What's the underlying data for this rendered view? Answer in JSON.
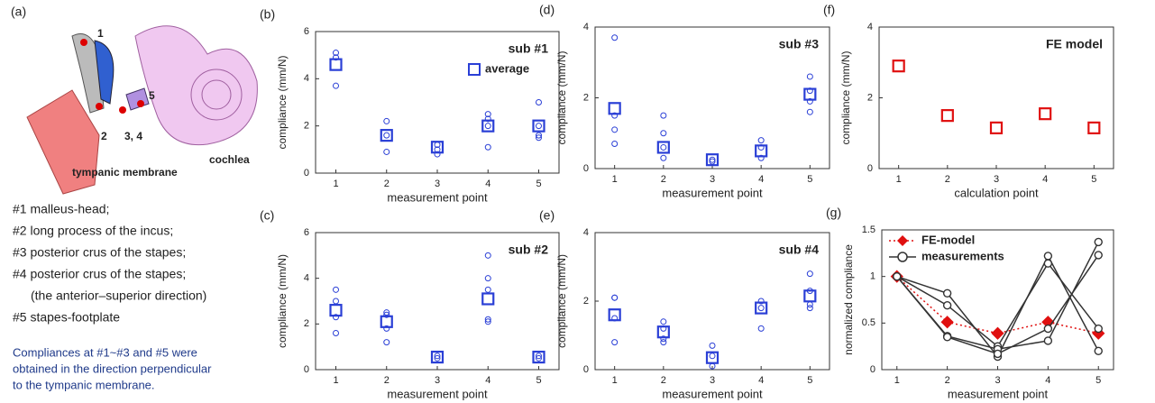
{
  "panel_a": {
    "panel_label": "(a)",
    "diagram_labels": [
      "1",
      "2",
      "3, 4",
      "5",
      "cochlea",
      "tympanic membrane"
    ],
    "list": [
      "#1 malleus-head;",
      "#2 long process of the incus;",
      "#3 posterior crus of the stapes;",
      "#4 posterior crus of the stapes;",
      "(the anterior–superior direction)",
      "#5 stapes-footplate"
    ],
    "note": [
      "Compliances at #1~#3 and #5 were",
      "obtained in the direction perpendicular",
      "to the tympanic membrane."
    ]
  },
  "chart_data": [
    {
      "type": "scatter",
      "panel_label": "(b)",
      "annotation": "sub #1",
      "xlabel": "measurement point",
      "ylabel": "compliance (mm/N)",
      "xlim": [
        0.6,
        5.4
      ],
      "xticks": [
        1,
        2,
        3,
        4,
        5
      ],
      "ylim": [
        0,
        6
      ],
      "yticks": [
        0,
        2,
        4,
        6
      ],
      "legend": "upper right",
      "series": [
        {
          "color": "#2a3fd6",
          "marker": "circle",
          "x": [
            1,
            1,
            1,
            2,
            2,
            2,
            3,
            3,
            3,
            4,
            4,
            4,
            4,
            5,
            5,
            5,
            5
          ],
          "values": [
            5.1,
            4.9,
            3.7,
            2.2,
            1.6,
            0.9,
            1.2,
            1.0,
            0.8,
            2.5,
            2.3,
            1.1,
            2.0,
            3.0,
            2.0,
            1.6,
            1.5
          ]
        },
        {
          "name": "average",
          "color": "#2a3fd6",
          "marker": "square",
          "x": [
            1,
            2,
            3,
            4,
            5
          ],
          "values": [
            4.6,
            1.6,
            1.1,
            2.0,
            2.0
          ]
        }
      ]
    },
    {
      "type": "scatter",
      "panel_label": "(c)",
      "annotation": "sub #2",
      "xlabel": "measurement point",
      "ylabel": "compliance (mm/N)",
      "xlim": [
        0.6,
        5.4
      ],
      "xticks": [
        1,
        2,
        3,
        4,
        5
      ],
      "ylim": [
        0,
        6
      ],
      "yticks": [
        0,
        2,
        4,
        6
      ],
      "series": [
        {
          "color": "#2a3fd6",
          "marker": "circle",
          "x": [
            1,
            1,
            1,
            1,
            2,
            2,
            2,
            2,
            3,
            3,
            4,
            4,
            4,
            4,
            4,
            5,
            5
          ],
          "values": [
            3.5,
            3.0,
            2.3,
            1.6,
            2.5,
            2.4,
            1.8,
            1.2,
            0.6,
            0.5,
            5.0,
            4.0,
            3.5,
            2.2,
            2.1,
            0.6,
            0.5
          ]
        },
        {
          "color": "#2a3fd6",
          "marker": "square",
          "x": [
            1,
            2,
            3,
            4,
            5
          ],
          "values": [
            2.6,
            2.1,
            0.55,
            3.1,
            0.55
          ]
        }
      ]
    },
    {
      "type": "scatter",
      "panel_label": "(d)",
      "annotation": "sub #3",
      "xlabel": "measurement point",
      "ylabel": "compliance (mm/N)",
      "xlim": [
        0.6,
        5.4
      ],
      "xticks": [
        1,
        2,
        3,
        4,
        5
      ],
      "ylim": [
        0,
        4
      ],
      "yticks": [
        0,
        2,
        4
      ],
      "series": [
        {
          "color": "#2a3fd6",
          "marker": "circle",
          "x": [
            1,
            1,
            1,
            1,
            2,
            2,
            2,
            2,
            3,
            3,
            4,
            4,
            4,
            5,
            5,
            5,
            5
          ],
          "values": [
            3.7,
            1.5,
            1.1,
            0.7,
            1.5,
            1.0,
            0.6,
            0.3,
            0.25,
            0.2,
            0.8,
            0.6,
            0.3,
            2.6,
            2.2,
            1.9,
            1.6
          ]
        },
        {
          "color": "#2a3fd6",
          "marker": "square",
          "x": [
            1,
            2,
            3,
            4,
            5
          ],
          "values": [
            1.7,
            0.6,
            0.25,
            0.5,
            2.1
          ]
        }
      ]
    },
    {
      "type": "scatter",
      "panel_label": "(e)",
      "annotation": "sub #4",
      "xlabel": "measurement point",
      "ylabel": "compliance (mm/N)",
      "xlim": [
        0.6,
        5.4
      ],
      "xticks": [
        1,
        2,
        3,
        4,
        5
      ],
      "ylim": [
        0,
        4
      ],
      "yticks": [
        0,
        2,
        4
      ],
      "series": [
        {
          "color": "#2a3fd6",
          "marker": "circle",
          "x": [
            1,
            1,
            1,
            1,
            2,
            2,
            2,
            2,
            3,
            3,
            3,
            4,
            4,
            4,
            5,
            5,
            5,
            5
          ],
          "values": [
            2.1,
            2.1,
            1.5,
            0.8,
            1.4,
            1.2,
            0.9,
            0.8,
            0.7,
            0.4,
            0.1,
            2.0,
            1.8,
            1.2,
            2.8,
            2.3,
            1.9,
            1.8
          ]
        },
        {
          "color": "#2a3fd6",
          "marker": "square",
          "x": [
            1,
            2,
            3,
            4,
            5
          ],
          "values": [
            1.6,
            1.1,
            0.35,
            1.8,
            2.15
          ]
        }
      ]
    },
    {
      "type": "scatter",
      "panel_label": "(f)",
      "annotation": "FE model",
      "xlabel": "calculation point",
      "ylabel": "compliance (mm/N)",
      "xlim": [
        0.6,
        5.4
      ],
      "xticks": [
        1,
        2,
        3,
        4,
        5
      ],
      "ylim": [
        0,
        4
      ],
      "yticks": [
        0,
        2,
        4
      ],
      "series": [
        {
          "color": "#e01010",
          "marker": "square",
          "x": [
            1,
            2,
            3,
            4,
            5
          ],
          "values": [
            2.9,
            1.5,
            1.15,
            1.55,
            1.15
          ]
        }
      ]
    },
    {
      "type": "line",
      "panel_label": "(g)",
      "xlabel": "measurement point",
      "ylabel": "normalized compliance",
      "xlim": [
        0.7,
        5.3
      ],
      "xticks": [
        1,
        2,
        3,
        4,
        5
      ],
      "ylim": [
        0,
        1.5
      ],
      "yticks": [
        0,
        0.5,
        1,
        1.5
      ],
      "legend": "upper left",
      "series": [
        {
          "name": "FE-model",
          "color": "#e01010",
          "marker": "diamond",
          "dash": true,
          "x": [
            1,
            2,
            3,
            4,
            5
          ],
          "lines": [
            [
              1,
              0.51,
              0.39,
              0.51,
              0.39
            ]
          ]
        },
        {
          "name": "measurements",
          "color": "#333333",
          "marker": "circle",
          "x": [
            1,
            2,
            3,
            4,
            5
          ],
          "lines": [
            [
              1,
              0.82,
              0.14,
              1.22,
              0.2
            ],
            [
              1,
              0.69,
              0.25,
              1.14,
              0.44
            ],
            [
              1,
              0.36,
              0.22,
              0.31,
              1.37
            ],
            [
              1,
              0.35,
              0.17,
              0.44,
              1.23
            ]
          ]
        }
      ]
    }
  ]
}
